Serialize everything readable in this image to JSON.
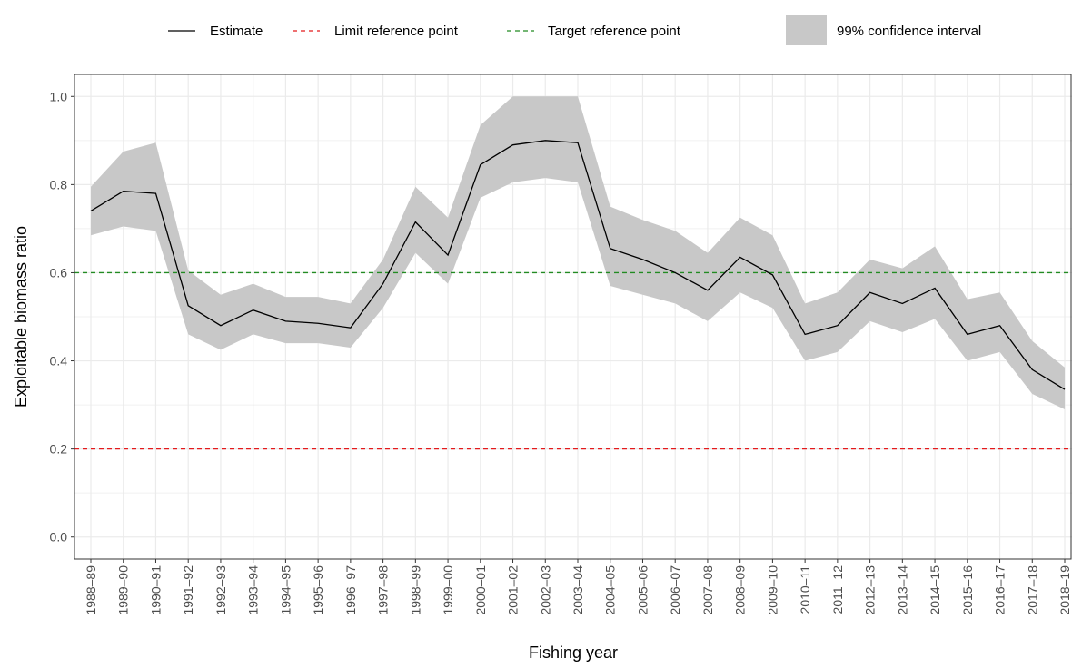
{
  "chart_data": {
    "type": "line",
    "x_label": "Fishing year",
    "y_label": "Exploitable biomass ratio",
    "categories": [
      "1988–89",
      "1989–90",
      "1990–91",
      "1991–92",
      "1992–93",
      "1993–94",
      "1994–95",
      "1995–96",
      "1996–97",
      "1997–98",
      "1998–99",
      "1999–00",
      "2000–01",
      "2001–02",
      "2002–03",
      "2003–04",
      "2004–05",
      "2005–06",
      "2006–07",
      "2007–08",
      "2008–09",
      "2009–10",
      "2010–11",
      "2011–12",
      "2012–13",
      "2013–14",
      "2014–15",
      "2015–16",
      "2016–17",
      "2017–18",
      "2018–19"
    ],
    "series": [
      {
        "name": "Estimate",
        "color": "#000000",
        "values": [
          0.74,
          0.785,
          0.78,
          0.525,
          0.48,
          0.515,
          0.49,
          0.485,
          0.475,
          0.575,
          0.715,
          0.64,
          0.845,
          0.89,
          0.9,
          0.895,
          0.655,
          0.63,
          0.6,
          0.56,
          0.635,
          0.595,
          0.46,
          0.48,
          0.555,
          0.53,
          0.565,
          0.46,
          0.48,
          0.38,
          0.335
        ]
      }
    ],
    "band": {
      "name": "99% confidence interval",
      "color": "#c8c8c8",
      "upper": [
        0.795,
        0.875,
        0.895,
        0.605,
        0.55,
        0.575,
        0.545,
        0.545,
        0.53,
        0.63,
        0.795,
        0.725,
        0.935,
        1.0,
        1.0,
        1.0,
        0.75,
        0.72,
        0.695,
        0.645,
        0.725,
        0.685,
        0.53,
        0.555,
        0.63,
        0.61,
        0.66,
        0.54,
        0.555,
        0.445,
        0.385
      ],
      "lower": [
        0.685,
        0.705,
        0.695,
        0.46,
        0.425,
        0.46,
        0.44,
        0.44,
        0.43,
        0.52,
        0.645,
        0.575,
        0.77,
        0.805,
        0.815,
        0.805,
        0.57,
        0.55,
        0.53,
        0.49,
        0.555,
        0.52,
        0.4,
        0.42,
        0.49,
        0.465,
        0.495,
        0.4,
        0.42,
        0.325,
        0.29
      ]
    },
    "reference_lines": [
      {
        "name": "Limit reference point",
        "value": 0.2,
        "color": "#e41a1c"
      },
      {
        "name": "Target reference point",
        "value": 0.6,
        "color": "#228b22"
      }
    ],
    "ylim": [
      -0.05,
      1.05
    ],
    "yticks": [
      {
        "value": 0,
        "label": "0.0"
      },
      0.2,
      0.4,
      0.6,
      0.8,
      {
        "value": 1,
        "label": "1.0"
      }
    ],
    "grid": true
  }
}
